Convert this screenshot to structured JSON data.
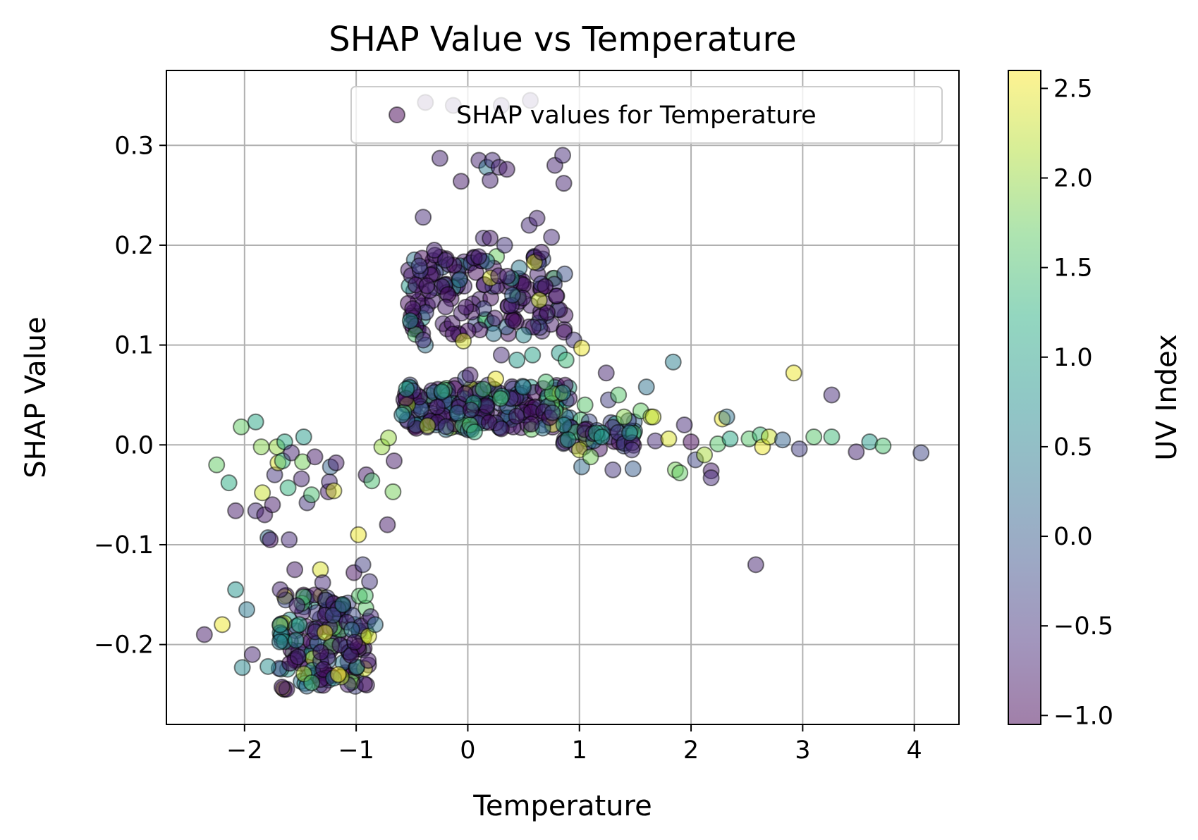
{
  "chart_data": {
    "type": "scatter",
    "title": "SHAP Value vs Temperature",
    "xlabel": "Temperature",
    "ylabel": "SHAP Value",
    "xlim": [
      -2.7,
      4.4
    ],
    "ylim": [
      -0.28,
      0.375
    ],
    "grid": true,
    "x_ticks": [
      -2,
      -1,
      0,
      1,
      2,
      3,
      4
    ],
    "x_tick_labels": [
      "−2",
      "−1",
      "0",
      "1",
      "2",
      "3",
      "4"
    ],
    "y_ticks": [
      -0.2,
      -0.1,
      0.0,
      0.1,
      0.2,
      0.3
    ],
    "y_tick_labels": [
      "−0.2",
      "−0.1",
      "0.0",
      "0.1",
      "0.2",
      "0.3"
    ],
    "legend": {
      "label": "SHAP values for Temperature",
      "location": "upper right"
    },
    "colorbar": {
      "label": "UV Index",
      "colormap": "viridis",
      "range": [
        -1.05,
        2.6
      ],
      "ticks": [
        -1.0,
        -0.5,
        0.0,
        0.5,
        1.0,
        1.5,
        2.0,
        2.5
      ],
      "tick_labels": [
        "−1.0",
        "−0.5",
        "0.0",
        "0.5",
        "1.0",
        "1.5",
        "2.0",
        "2.5"
      ]
    },
    "marker_alpha": 0.5,
    "points": [
      {
        "x": -2.36,
        "y": -0.19,
        "c": -0.8
      },
      {
        "x": -2.25,
        "y": -0.02,
        "c": 1.7
      },
      {
        "x": -2.2,
        "y": -0.18,
        "c": 2.5
      },
      {
        "x": -2.14,
        "y": -0.038,
        "c": 1.2
      },
      {
        "x": -2.08,
        "y": -0.145,
        "c": 0.8
      },
      {
        "x": -2.08,
        "y": -0.066,
        "c": -0.8
      },
      {
        "x": -2.03,
        "y": 0.018,
        "c": 1.7
      },
      {
        "x": -2.02,
        "y": -0.223,
        "c": 0.6
      },
      {
        "x": -1.98,
        "y": -0.165,
        "c": 0.4
      },
      {
        "x": -1.93,
        "y": -0.21,
        "c": -0.7
      },
      {
        "x": -1.9,
        "y": 0.023,
        "c": 1.1
      },
      {
        "x": -1.9,
        "y": -0.066,
        "c": -0.6
      },
      {
        "x": -1.85,
        "y": -0.002,
        "c": 1.9
      },
      {
        "x": -1.84,
        "y": -0.048,
        "c": 2.3
      },
      {
        "x": -1.82,
        "y": -0.07,
        "c": -0.8
      },
      {
        "x": -1.79,
        "y": -0.222,
        "c": 0.7
      },
      {
        "x": -1.79,
        "y": -0.093,
        "c": 0.2
      },
      {
        "x": -1.77,
        "y": -0.095,
        "c": -0.9
      },
      {
        "x": -1.75,
        "y": -0.06,
        "c": -0.8
      },
      {
        "x": -1.73,
        "y": -0.03,
        "c": -0.5
      },
      {
        "x": -1.71,
        "y": -0.002,
        "c": 2.0
      },
      {
        "x": -1.7,
        "y": -0.018,
        "c": 2.4
      },
      {
        "x": -1.68,
        "y": -0.145,
        "c": -0.7
      },
      {
        "x": -1.66,
        "y": -0.016,
        "c": 1.3
      },
      {
        "x": -1.64,
        "y": 0.003,
        "c": 1.1
      },
      {
        "x": -1.61,
        "y": -0.043,
        "c": 1.3
      },
      {
        "x": -1.6,
        "y": -0.095,
        "c": -0.6
      },
      {
        "x": -1.58,
        "y": -0.008,
        "c": -0.7
      },
      {
        "x": -1.55,
        "y": -0.125,
        "c": -0.8
      },
      {
        "x": -1.51,
        "y": -0.18,
        "c": 1.2
      },
      {
        "x": -1.49,
        "y": -0.034,
        "c": -0.7
      },
      {
        "x": -1.48,
        "y": -0.017,
        "c": 1.8
      },
      {
        "x": -1.47,
        "y": 0.008,
        "c": 0.9
      },
      {
        "x": -1.44,
        "y": -0.058,
        "c": -0.5
      },
      {
        "x": -1.4,
        "y": -0.05,
        "c": 1.5
      },
      {
        "x": -1.37,
        "y": -0.012,
        "c": -0.8
      },
      {
        "x": -1.32,
        "y": -0.125,
        "c": 2.4
      },
      {
        "x": -1.3,
        "y": -0.138,
        "c": -0.6
      },
      {
        "x": -1.28,
        "y": -0.188,
        "c": 2.5
      },
      {
        "x": -1.25,
        "y": -0.047,
        "c": -0.8
      },
      {
        "x": -1.24,
        "y": -0.037,
        "c": -0.6
      },
      {
        "x": -1.23,
        "y": -0.022,
        "c": 0.1
      },
      {
        "x": -1.2,
        "y": -0.046,
        "c": 2.4
      },
      {
        "x": -1.18,
        "y": -0.018,
        "c": -0.8
      },
      {
        "x": -1.16,
        "y": -0.23,
        "c": 2.6
      },
      {
        "x": -1.12,
        "y": -0.16,
        "c": 0.6
      },
      {
        "x": -1.02,
        "y": -0.128,
        "c": -0.9
      },
      {
        "x": -0.98,
        "y": -0.09,
        "c": 2.5
      },
      {
        "x": -0.94,
        "y": -0.12,
        "c": -0.4
      },
      {
        "x": -0.91,
        "y": -0.03,
        "c": -0.8
      },
      {
        "x": -0.88,
        "y": -0.137,
        "c": -0.5
      },
      {
        "x": -0.87,
        "y": -0.172,
        "c": -0.6
      },
      {
        "x": -0.86,
        "y": -0.036,
        "c": 1.5
      },
      {
        "x": -0.83,
        "y": -0.18,
        "c": 0.3
      },
      {
        "x": -0.77,
        "y": -0.002,
        "c": 2.0
      },
      {
        "x": -0.72,
        "y": -0.08,
        "c": -0.8
      },
      {
        "x": -0.71,
        "y": 0.007,
        "c": 2.0
      },
      {
        "x": -0.67,
        "y": -0.047,
        "c": 1.8
      },
      {
        "x": -0.66,
        "y": -0.016,
        "c": -0.8
      },
      {
        "x": -0.59,
        "y": 0.03,
        "c": 0.5
      },
      {
        "x": -0.4,
        "y": 0.228,
        "c": -0.6
      },
      {
        "x": -0.38,
        "y": 0.1,
        "c": 0.3
      },
      {
        "x": -0.25,
        "y": 0.287,
        "c": -0.7
      },
      {
        "x": -0.2,
        "y": 0.185,
        "c": -0.6
      },
      {
        "x": -0.06,
        "y": 0.264,
        "c": -0.8
      },
      {
        "x": -0.04,
        "y": 0.104,
        "c": 2.4
      },
      {
        "x": -0.02,
        "y": 0.067,
        "c": -0.2
      },
      {
        "x": 0.02,
        "y": 0.07,
        "c": -0.8
      },
      {
        "x": 0.06,
        "y": 0.013,
        "c": 1.3
      },
      {
        "x": 0.1,
        "y": 0.285,
        "c": -0.7
      },
      {
        "x": 0.14,
        "y": 0.207,
        "c": -0.6
      },
      {
        "x": 0.17,
        "y": 0.278,
        "c": 0.4
      },
      {
        "x": 0.2,
        "y": 0.265,
        "c": -0.7
      },
      {
        "x": 0.2,
        "y": 0.207,
        "c": -0.8
      },
      {
        "x": 0.22,
        "y": 0.285,
        "c": -0.6
      },
      {
        "x": 0.25,
        "y": 0.066,
        "c": 2.5
      },
      {
        "x": 0.28,
        "y": 0.278,
        "c": -0.7
      },
      {
        "x": 0.3,
        "y": 0.09,
        "c": -0.6
      },
      {
        "x": 0.33,
        "y": 0.2,
        "c": -0.5
      },
      {
        "x": 0.35,
        "y": 0.276,
        "c": -0.8
      },
      {
        "x": 0.4,
        "y": 0.15,
        "c": 0.1
      },
      {
        "x": 0.44,
        "y": 0.085,
        "c": 0.9
      },
      {
        "x": 0.5,
        "y": 0.11,
        "c": 0.6
      },
      {
        "x": 0.55,
        "y": 0.22,
        "c": -0.6
      },
      {
        "x": 0.58,
        "y": 0.09,
        "c": 1.0
      },
      {
        "x": 0.62,
        "y": 0.227,
        "c": -0.7
      },
      {
        "x": 0.64,
        "y": 0.145,
        "c": 2.3
      },
      {
        "x": 0.66,
        "y": 0.193,
        "c": -0.8
      },
      {
        "x": 0.7,
        "y": 0.063,
        "c": 1.5
      },
      {
        "x": 0.75,
        "y": 0.208,
        "c": -0.6
      },
      {
        "x": 0.78,
        "y": 0.28,
        "c": -0.7
      },
      {
        "x": 0.82,
        "y": 0.092,
        "c": 0.9
      },
      {
        "x": 0.85,
        "y": 0.29,
        "c": -0.6
      },
      {
        "x": 0.86,
        "y": 0.262,
        "c": -0.7
      },
      {
        "x": 0.88,
        "y": 0.085,
        "c": 1.4
      },
      {
        "x": 0.95,
        "y": 0.105,
        "c": -0.5
      },
      {
        "x": 1.02,
        "y": 0.097,
        "c": 2.5
      },
      {
        "x": 1.0,
        "y": -0.005,
        "c": 2.3
      },
      {
        "x": 1.02,
        "y": -0.022,
        "c": 0.2
      },
      {
        "x": 1.05,
        "y": 0.04,
        "c": 1.6
      },
      {
        "x": 1.1,
        "y": -0.012,
        "c": 1.8
      },
      {
        "x": 1.15,
        "y": 0.012,
        "c": 1.2
      },
      {
        "x": 1.2,
        "y": 0.008,
        "c": 0.8
      },
      {
        "x": 1.24,
        "y": 0.072,
        "c": -0.7
      },
      {
        "x": 1.26,
        "y": 0.045,
        "c": -0.4
      },
      {
        "x": 1.3,
        "y": -0.025,
        "c": -0.5
      },
      {
        "x": 1.35,
        "y": 0.05,
        "c": 1.6
      },
      {
        "x": 1.4,
        "y": 0.028,
        "c": 1.9
      },
      {
        "x": 1.45,
        "y": 0.012,
        "c": 0.6
      },
      {
        "x": 1.47,
        "y": -0.005,
        "c": -0.5
      },
      {
        "x": 1.48,
        "y": -0.024,
        "c": 0.0
      },
      {
        "x": 1.55,
        "y": 0.034,
        "c": 1.7
      },
      {
        "x": 1.6,
        "y": 0.058,
        "c": 0.3
      },
      {
        "x": 1.64,
        "y": 0.028,
        "c": 2.2
      },
      {
        "x": 1.66,
        "y": 0.028,
        "c": 2.3
      },
      {
        "x": 1.68,
        "y": 0.004,
        "c": -0.6
      },
      {
        "x": 1.8,
        "y": 0.006,
        "c": 2.4
      },
      {
        "x": 1.84,
        "y": 0.083,
        "c": 0.5
      },
      {
        "x": 1.86,
        "y": -0.025,
        "c": 1.8
      },
      {
        "x": 1.9,
        "y": -0.028,
        "c": 1.7
      },
      {
        "x": 1.94,
        "y": 0.02,
        "c": -0.6
      },
      {
        "x": 2.0,
        "y": 0.003,
        "c": -1.0
      },
      {
        "x": 2.04,
        "y": -0.015,
        "c": -0.3
      },
      {
        "x": 2.12,
        "y": -0.01,
        "c": 2.1
      },
      {
        "x": 2.18,
        "y": -0.026,
        "c": -0.8
      },
      {
        "x": 2.18,
        "y": -0.033,
        "c": -0.6
      },
      {
        "x": 2.24,
        "y": 0.001,
        "c": 1.6
      },
      {
        "x": 2.28,
        "y": 0.026,
        "c": 2.5
      },
      {
        "x": 2.32,
        "y": 0.028,
        "c": 0.3
      },
      {
        "x": 2.35,
        "y": 0.006,
        "c": 1.1
      },
      {
        "x": 2.52,
        "y": 0.006,
        "c": 1.6
      },
      {
        "x": 2.58,
        "y": -0.12,
        "c": -0.7
      },
      {
        "x": 2.62,
        "y": 0.01,
        "c": 1.4
      },
      {
        "x": 2.64,
        "y": -0.002,
        "c": 2.5
      },
      {
        "x": 2.7,
        "y": 0.008,
        "c": 2.3
      },
      {
        "x": 2.82,
        "y": 0.005,
        "c": 0.1
      },
      {
        "x": 2.92,
        "y": 0.072,
        "c": 2.5
      },
      {
        "x": 2.97,
        "y": -0.004,
        "c": -0.4
      },
      {
        "x": 3.1,
        "y": 0.008,
        "c": 1.6
      },
      {
        "x": 3.26,
        "y": 0.05,
        "c": -0.6
      },
      {
        "x": 3.26,
        "y": 0.008,
        "c": 1.4
      },
      {
        "x": 3.48,
        "y": -0.007,
        "c": -0.7
      },
      {
        "x": 3.6,
        "y": 0.003,
        "c": 0.9
      },
      {
        "x": 3.72,
        "y": -0.001,
        "c": 1.5
      },
      {
        "x": 4.06,
        "y": -0.008,
        "c": -0.3
      },
      {
        "x": -0.38,
        "y": 0.343,
        "c": -0.8
      },
      {
        "x": -0.13,
        "y": 0.34,
        "c": -0.7
      },
      {
        "x": 0.3,
        "y": 0.34,
        "c": -0.6
      },
      {
        "x": 0.56,
        "y": 0.345,
        "c": -0.6
      },
      {
        "x": -0.4,
        "y": 0.105,
        "c": -0.6
      },
      {
        "x": -0.3,
        "y": 0.195,
        "c": -0.7
      },
      {
        "x": 0.86,
        "y": 0.02,
        "c": 0.8
      },
      {
        "x": -0.55,
        "y": 0.056,
        "c": 1.0
      }
    ],
    "clusters": [
      {
        "x_range": [
          -1.7,
          -0.88
        ],
        "y_range": [
          -0.245,
          -0.15
        ],
        "n": 160,
        "c_weights": [
          0.55,
          0.12,
          0.1,
          0.1,
          0.08,
          0.05
        ],
        "seed": 11
      },
      {
        "x_range": [
          -0.58,
          0.92
        ],
        "y_range": [
          0.015,
          0.06
        ],
        "n": 200,
        "c_weights": [
          0.45,
          0.15,
          0.15,
          0.12,
          0.08,
          0.05
        ],
        "seed": 23
      },
      {
        "x_range": [
          -0.55,
          0.9
        ],
        "y_range": [
          0.11,
          0.19
        ],
        "n": 160,
        "c_weights": [
          0.72,
          0.12,
          0.06,
          0.05,
          0.03,
          0.02
        ],
        "seed": 37
      },
      {
        "x_range": [
          0.85,
          1.5
        ],
        "y_range": [
          -0.005,
          0.025
        ],
        "n": 45,
        "c_weights": [
          0.3,
          0.15,
          0.2,
          0.2,
          0.1,
          0.05
        ],
        "seed": 41
      }
    ]
  }
}
